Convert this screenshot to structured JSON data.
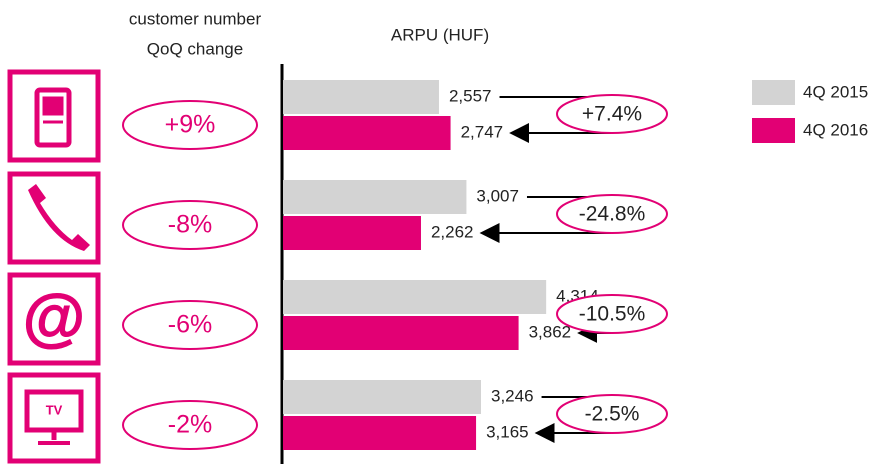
{
  "chart_data": {
    "type": "bar",
    "orientation": "horizontal",
    "header_left": [
      "customer number",
      "QoQ change"
    ],
    "title": "ARPU (HUF)",
    "categories": [
      null,
      null,
      null,
      null
    ],
    "customer_change": [
      "+9%",
      "-8%",
      "-6%",
      "-2%"
    ],
    "arpu_change": [
      "+7.4%",
      "-24.8%",
      "-10.5%",
      "-2.5%"
    ],
    "series": [
      {
        "name": "4Q 2015",
        "color": "#d3d3d3",
        "values": [
          2557,
          3007,
          4314,
          3246
        ],
        "value_labels": [
          "2,557",
          "3,007",
          "4,314",
          "3,246"
        ]
      },
      {
        "name": "4Q 2016",
        "color": "#e20074",
        "values": [
          2747,
          2262,
          3862,
          3165
        ],
        "value_labels": [
          "2,747",
          "2,262",
          "3,862",
          "3,165"
        ]
      }
    ],
    "xlim": [
      0,
      5000
    ],
    "legend": "top-right"
  }
}
